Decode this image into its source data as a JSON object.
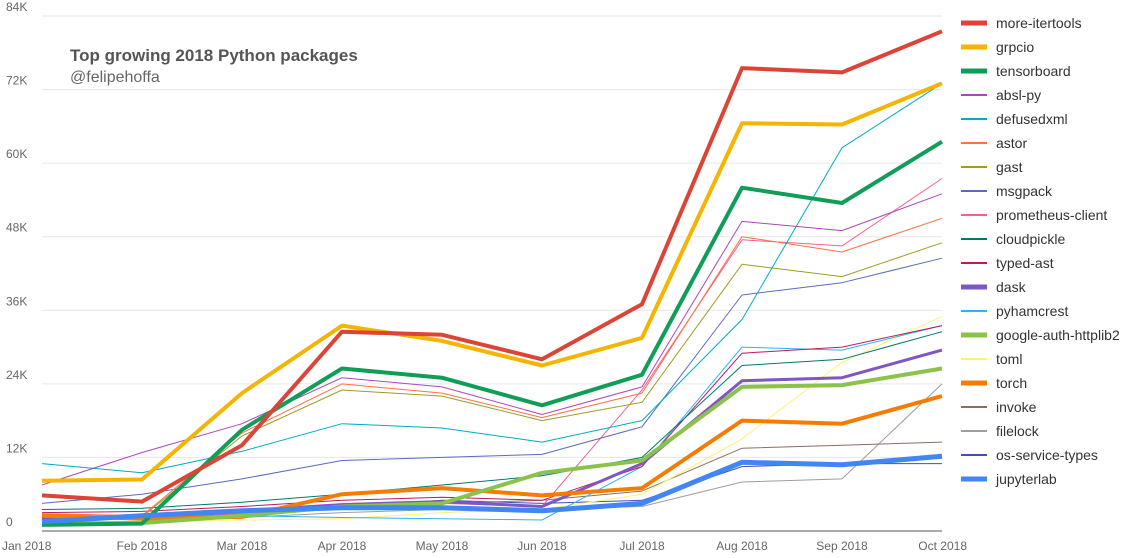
{
  "chart_data": {
    "type": "line",
    "title": "Top growing 2018 Python packages",
    "subtitle": "@felipehoffa",
    "x": [
      "Jan 2018",
      "Feb 2018",
      "Mar 2018",
      "Apr 2018",
      "May 2018",
      "Jun 2018",
      "Jul 2018",
      "Aug 2018",
      "Sep 2018",
      "Oct 2018"
    ],
    "ylim": [
      0,
      84000
    ],
    "yticks": [
      0,
      12000,
      24000,
      36000,
      48000,
      60000,
      72000,
      84000
    ],
    "ytick_labels": [
      "0",
      "12K",
      "24K",
      "36K",
      "48K",
      "60K",
      "72K",
      "84K"
    ],
    "grid": true,
    "legend_position": "right",
    "series": [
      {
        "name": "more-itertools",
        "color": "#db4437",
        "width": 4,
        "values": [
          5800,
          4800,
          14000,
          32500,
          32000,
          28000,
          37000,
          75500,
          74800,
          81500
        ]
      },
      {
        "name": "grpcio",
        "color": "#f4b400",
        "width": 4,
        "values": [
          8200,
          8400,
          22500,
          33500,
          31000,
          27000,
          31500,
          66500,
          66300,
          73000
        ]
      },
      {
        "name": "tensorboard",
        "color": "#0f9d58",
        "width": 4,
        "values": [
          1000,
          1200,
          16500,
          26500,
          25000,
          20500,
          25500,
          56000,
          53500,
          63500
        ]
      },
      {
        "name": "absl-py",
        "color": "#ab47bc",
        "width": 1,
        "values": [
          7500,
          12800,
          17500,
          25000,
          23500,
          19000,
          23500,
          50500,
          49000,
          55000
        ]
      },
      {
        "name": "defusedxml",
        "color": "#00acc1",
        "width": 1,
        "values": [
          11000,
          9500,
          13000,
          17500,
          16800,
          14500,
          18000,
          34500,
          62500,
          73000
        ]
      },
      {
        "name": "astor",
        "color": "#ff7043",
        "width": 1,
        "values": [
          2800,
          2500,
          16000,
          24000,
          22500,
          18500,
          22500,
          48000,
          45500,
          51000
        ]
      },
      {
        "name": "gast",
        "color": "#9e9d24",
        "width": 1,
        "values": [
          2500,
          2300,
          15500,
          23000,
          22000,
          18000,
          21000,
          43500,
          41500,
          47000
        ]
      },
      {
        "name": "msgpack",
        "color": "#5c6bc0",
        "width": 1,
        "values": [
          4500,
          6000,
          8500,
          11500,
          12000,
          12500,
          17000,
          38500,
          40500,
          44500
        ]
      },
      {
        "name": "prometheus-client",
        "color": "#f06292",
        "width": 1,
        "values": [
          2000,
          2000,
          2800,
          4000,
          4500,
          4000,
          23000,
          47500,
          46500,
          57500
        ]
      },
      {
        "name": "cloudpickle",
        "color": "#00796b",
        "width": 1,
        "values": [
          3500,
          3700,
          4700,
          6000,
          7500,
          9000,
          12000,
          27000,
          28000,
          32500
        ]
      },
      {
        "name": "typed-ast",
        "color": "#c2185b",
        "width": 1,
        "values": [
          3000,
          3200,
          4000,
          5000,
          5500,
          5000,
          10500,
          29000,
          30000,
          33500
        ]
      },
      {
        "name": "dask",
        "color": "#7e57c2",
        "width": 3,
        "values": [
          2000,
          2400,
          3300,
          4300,
          4800,
          4000,
          11000,
          24500,
          25000,
          29500
        ]
      },
      {
        "name": "pyhamcrest",
        "color": "#29b6f6",
        "width": 1,
        "values": [
          2500,
          2500,
          2500,
          2200,
          2000,
          1800,
          10500,
          30000,
          29500,
          33500
        ]
      },
      {
        "name": "google-auth-httplib2",
        "color": "#8bc34a",
        "width": 4,
        "values": [
          1200,
          1300,
          2500,
          4000,
          4500,
          9500,
          11500,
          23500,
          23800,
          26500
        ]
      },
      {
        "name": "toml",
        "color": "#fff176",
        "width": 1,
        "values": [
          1500,
          1600,
          1800,
          2000,
          3000,
          3500,
          6000,
          15000,
          27500,
          35000
        ]
      },
      {
        "name": "torch",
        "color": "#f57c00",
        "width": 4,
        "values": [
          2500,
          2000,
          2300,
          6000,
          7000,
          5800,
          7000,
          18000,
          17500,
          22000
        ]
      },
      {
        "name": "invoke",
        "color": "#8d6e63",
        "width": 1,
        "values": [
          2200,
          2400,
          3000,
          4000,
          4500,
          5000,
          6500,
          13500,
          14000,
          14500
        ]
      },
      {
        "name": "filelock",
        "color": "#9e9e9e",
        "width": 1,
        "values": [
          1800,
          2000,
          2200,
          3000,
          3500,
          3500,
          4000,
          8000,
          8500,
          24000
        ]
      },
      {
        "name": "os-service-types",
        "color": "#3f51b5",
        "width": 1,
        "values": [
          2000,
          2200,
          2800,
          4000,
          5000,
          4500,
          5000,
          10500,
          11000,
          11000
        ]
      },
      {
        "name": "jupyterlab",
        "color": "#4285f4",
        "width": 5,
        "values": [
          1500,
          2500,
          3300,
          3800,
          3800,
          3300,
          4500,
          11200,
          10800,
          12200
        ]
      }
    ]
  }
}
